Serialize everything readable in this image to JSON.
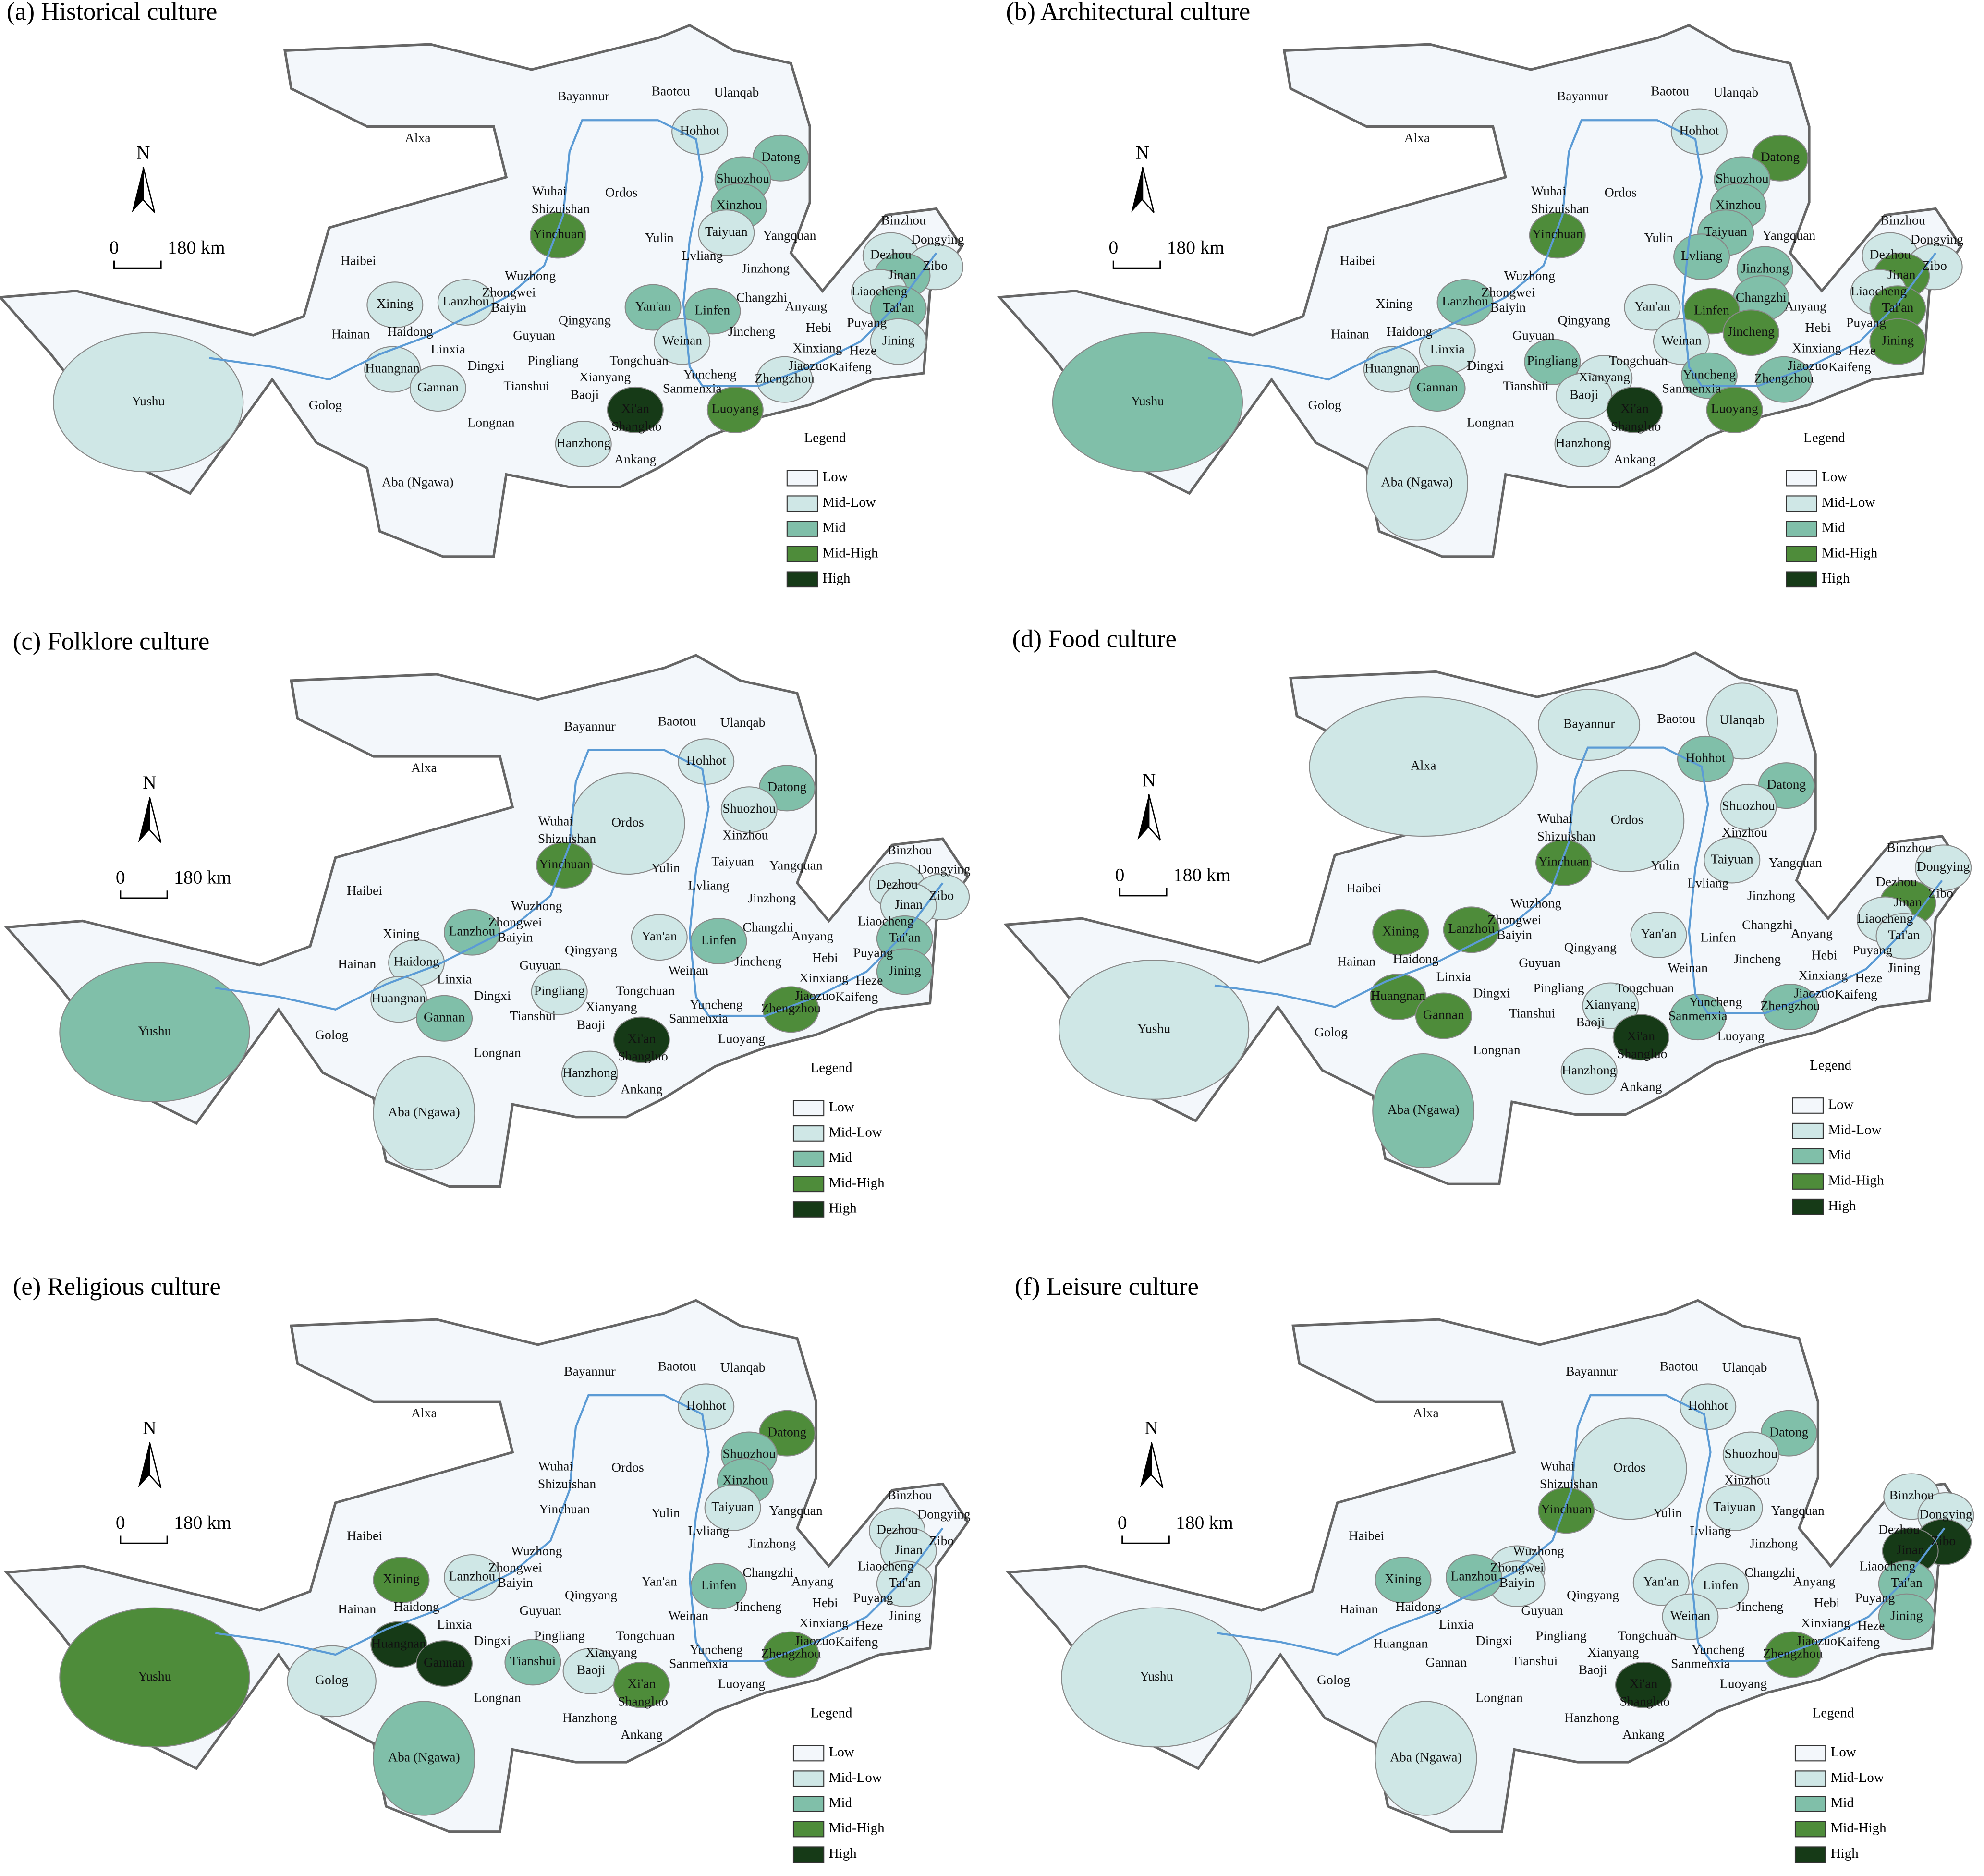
{
  "panels": [
    {
      "title": "(a) Historical culture",
      "levels": {
        "Xi'an": "High",
        "Luoyang": "Mid-High",
        "Yinchuan": "Mid-High",
        "Datong": "Mid",
        "Shuozhou": "Mid",
        "Xinzhou": "Mid",
        "Yan'an": "Mid",
        "Linfen": "Mid",
        "Jinan": "Mid",
        "Tai'an": "Mid",
        "Yushu": "Mid-Low",
        "Hohhot": "Mid-Low",
        "Lanzhou": "Mid-Low",
        "Gannan": "Mid-Low",
        "Hanzhong": "Mid-Low",
        "Taiyuan": "Mid-Low",
        "Weinan": "Mid-Low",
        "Zhengzhou": "Mid-Low",
        "Jining": "Mid-Low",
        "Liaocheng": "Mid-Low",
        "Dezhou": "Mid-Low",
        "Zibo": "Mid-Low",
        "Huangnan": "Mid-Low",
        "Xining": "Mid-Low"
      }
    },
    {
      "title": "(b) Architectural culture",
      "levels": {
        "Xi'an": "High",
        "Datong": "Mid-High",
        "Linfen": "Mid-High",
        "Jincheng": "Mid-High",
        "Luoyang": "Mid-High",
        "Tai'an": "Mid-High",
        "Jining": "Mid-High",
        "Jinan": "Mid-High",
        "Yinchuan": "Mid-High",
        "Yushu": "Mid",
        "Shuozhou": "Mid",
        "Xinzhou": "Mid",
        "Lvliang": "Mid",
        "Changzhi": "Mid",
        "Gannan": "Mid",
        "Lanzhou": "Mid",
        "Taiyuan": "Mid",
        "Jinzhong": "Mid",
        "Yuncheng": "Mid",
        "Pingliang": "Mid",
        "Zhengzhou": "Mid",
        "Weinan": "Mid-Low",
        "Aba (Ngawa)": "Mid-Low",
        "Hohhot": "Mid-Low",
        "Yan'an": "Mid-Low",
        "Huangnan": "Mid-Low",
        "Linxia": "Mid-Low",
        "Hanzhong": "Mid-Low",
        "Xianyang": "Mid-Low",
        "Baoji": "Mid-Low",
        "Dezhou": "Mid-Low",
        "Zibo": "Mid-Low",
        "Liaocheng": "Mid-Low"
      }
    },
    {
      "title": "(c) Folklore culture",
      "levels": {
        "Xi'an": "High",
        "Zhengzhou": "Mid-High",
        "Yinchuan": "Mid-High",
        "Yushu": "Mid",
        "Datong": "Mid",
        "Lanzhou": "Mid",
        "Gannan": "Mid",
        "Linfen": "Mid",
        "Tai'an": "Mid",
        "Jining": "Mid",
        "Aba (Ngawa)": "Mid-Low",
        "Ordos": "Mid-Low",
        "Yan'an": "Mid-Low",
        "Shuozhou": "Mid-Low",
        "Hohhot": "Mid-Low",
        "Haidong": "Mid-Low",
        "Huangnan": "Mid-Low",
        "Hanzhong": "Mid-Low",
        "Pingliang": "Mid-Low",
        "Jinan": "Mid-Low",
        "Dezhou": "Mid-Low",
        "Zibo": "Mid-Low"
      }
    },
    {
      "title": "(d) Food culture",
      "levels": {
        "Xi'an": "High",
        "Lanzhou": "Mid-High",
        "Gannan": "Mid-High",
        "Xining": "Mid-High",
        "Huangnan": "Mid-High",
        "Jinan": "Mid-High",
        "Yinchuan": "Mid-High",
        "Aba (Ngawa)": "Mid",
        "Zhengzhou": "Mid",
        "Sanmenxia": "Mid",
        "Hohhot": "Mid",
        "Datong": "Mid",
        "Alxa": "Mid-Low",
        "Yushu": "Mid-Low",
        "Ordos": "Mid-Low",
        "Bayannur": "Mid-Low",
        "Ulanqab": "Mid-Low",
        "Shuozhou": "Mid-Low",
        "Taiyuan": "Mid-Low",
        "Yan'an": "Mid-Low",
        "Hanzhong": "Mid-Low",
        "Xianyang": "Mid-Low",
        "Dongying": "Mid-Low",
        "Liaocheng": "Mid-Low",
        "Tai'an": "Mid-Low"
      }
    },
    {
      "title": "(e) Religious culture",
      "levels": {
        "Gannan": "High",
        "Huangnan": "High",
        "Yushu": "Mid-High",
        "Datong": "Mid-High",
        "Zhengzhou": "Mid-High",
        "Xi'an": "Mid-High",
        "Xining": "Mid-High",
        "Aba (Ngawa)": "Mid",
        "Linfen": "Mid",
        "Xinzhou": "Mid",
        "Shuozhou": "Mid",
        "Tianshui": "Mid",
        "Lanzhou": "Mid-Low",
        "Golog": "Mid-Low",
        "Hohhot": "Mid-Low",
        "Taiyuan": "Mid-Low",
        "Baoji": "Mid-Low",
        "Jinan": "Mid-Low",
        "Tai'an": "Mid-Low",
        "Dezhou": "Mid-Low"
      }
    },
    {
      "title": "(f) Leisure culture",
      "levels": {
        "Xi'an": "High",
        "Jinan": "High",
        "Zibo": "High",
        "Zhengzhou": "Mid-High",
        "Yinchuan": "Mid-High",
        "Datong": "Mid",
        "Lanzhou": "Mid",
        "Xining": "Mid",
        "Tai'an": "Mid",
        "Jining": "Mid",
        "Yushu": "Mid-Low",
        "Aba (Ngawa)": "Mid-Low",
        "Ordos": "Mid-Low",
        "Hohhot": "Mid-Low",
        "Shuozhou": "Mid-Low",
        "Yan'an": "Mid-Low",
        "Weinan": "Mid-Low",
        "Linfen": "Mid-Low",
        "Taiyuan": "Mid-Low",
        "Zhongwei": "Mid-Low",
        "Baiyin": "Mid-Low",
        "Binzhou": "Mid-Low",
        "Dongying": "Mid-Low"
      }
    }
  ],
  "cities": [
    "Bayannur",
    "Baotou",
    "Ulanqab",
    "Alxa",
    "Hohhot",
    "Datong",
    "Ordos",
    "Wuhai",
    "Shizuishan",
    "Shuozhou",
    "Xinzhou",
    "Yinchuan",
    "Yulin",
    "Taiyuan",
    "Yangquan",
    "Lvliang",
    "Jinzhong",
    "Binzhou",
    "Dongying",
    "Dezhou",
    "Zibo",
    "Jinan",
    "Haibei",
    "Wuzhong",
    "Zhongwei",
    "Baiyin",
    "Xining",
    "Lanzhou",
    "Haidong",
    "Hainan",
    "Linxia",
    "Qingyang",
    "Yan'an",
    "Changzhi",
    "Liaocheng",
    "Tai'an",
    "Anyang",
    "Hebi",
    "Puyang",
    "Jining",
    "Linfen",
    "Jincheng",
    "Weinan",
    "Huangnan",
    "Dingxi",
    "Guyuan",
    "Pingliang",
    "Xinxiang",
    "Jiaozuo",
    "Heze",
    "Kaifeng",
    "Tongchuan",
    "Gannan",
    "Xianyang",
    "Yuncheng",
    "Zhengzhou",
    "Sanmenxia",
    "Yushu",
    "Golog",
    "Tianshui",
    "Baoji",
    "Xi'an",
    "Luoyang",
    "Longnan",
    "Shangluo",
    "Hanzhong",
    "Ankang",
    "Aba (Ngawa)"
  ],
  "north": "N",
  "scale": [
    "0",
    "180 km"
  ],
  "legend": {
    "title": "Legend",
    "items": [
      {
        "label": "Low",
        "color": "#f3f7fb"
      },
      {
        "label": "Mid-Low",
        "color": "#cfe7e6"
      },
      {
        "label": "Mid",
        "color": "#80bfa9"
      },
      {
        "label": "Mid-High",
        "color": "#4e8c3a"
      },
      {
        "label": "High",
        "color": "#163a17"
      }
    ]
  }
}
